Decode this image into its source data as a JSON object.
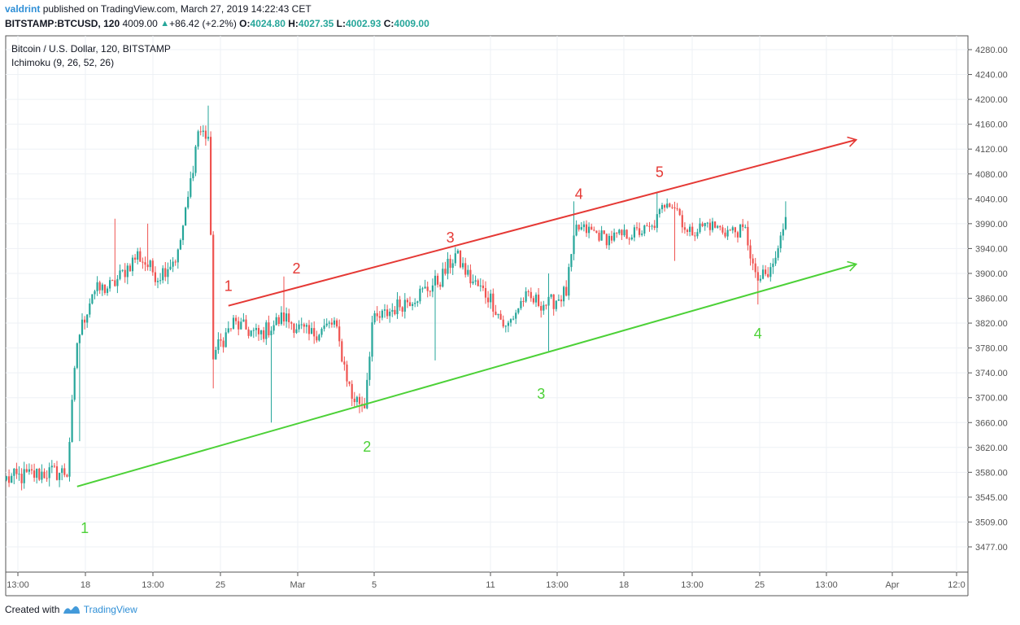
{
  "header": {
    "author": "valdrint",
    "published_text": "published on TradingView.com, March 27, 2019 14:22:43 CET",
    "symbol": "BITSTAMP:BTCUSD, 120",
    "last": "4009.00",
    "change": "+86.42 (+2.2%)",
    "o_label": "O:",
    "o_value": "4024.80",
    "h_label": "H:",
    "h_value": "4027.35",
    "l_label": "L:",
    "l_value": "4002.93",
    "c_label": "C:",
    "c_value": "4009.00"
  },
  "legend": {
    "series": "Bitcoin / U.S. Dollar, 120, BITSTAMP",
    "indicator": "Ichimoku (9, 26, 52, 26)"
  },
  "footer": {
    "created_with": "Created with",
    "brand": "TradingView"
  },
  "colors": {
    "up": "#26a69a",
    "down": "#ef5350",
    "red_line": "#e53935",
    "green_line": "#4cd137",
    "grid": "#eef1f5"
  },
  "chart_data": {
    "type": "candlestick",
    "y_ticks": [
      "4280.00",
      "4240.00",
      "4200.00",
      "4160.00",
      "4120.00",
      "4080.00",
      "4040.00",
      "3990.00",
      "3940.00",
      "3900.00",
      "3860.00",
      "3820.00",
      "3780.00",
      "3740.00",
      "3700.00",
      "3660.00",
      "3620.00",
      "3580.00",
      "3545.00",
      "3509.00",
      "3477.00"
    ],
    "x_ticks": [
      "13:00",
      "18",
      "13:00",
      "25",
      "Mar",
      "5",
      "11",
      "13:00",
      "18",
      "13:00",
      "25",
      "13:00",
      "Apr",
      "12:0"
    ],
    "anchors": [
      {
        "i": 0,
        "p": 3570
      },
      {
        "i": 16,
        "p": 3580
      },
      {
        "i": 24,
        "p": 3580
      },
      {
        "i": 28,
        "p": 3790
      },
      {
        "i": 34,
        "p": 3870
      },
      {
        "i": 42,
        "p": 3880
      },
      {
        "i": 52,
        "p": 3930
      },
      {
        "i": 60,
        "p": 3895
      },
      {
        "i": 68,
        "p": 3930
      },
      {
        "i": 76,
        "p": 4150
      },
      {
        "i": 80,
        "p": 4140
      },
      {
        "i": 82,
        "p": 3770
      },
      {
        "i": 90,
        "p": 3820
      },
      {
        "i": 100,
        "p": 3800
      },
      {
        "i": 110,
        "p": 3830
      },
      {
        "i": 120,
        "p": 3800
      },
      {
        "i": 130,
        "p": 3820
      },
      {
        "i": 137,
        "p": 3700
      },
      {
        "i": 142,
        "p": 3690
      },
      {
        "i": 145,
        "p": 3820
      },
      {
        "i": 156,
        "p": 3850
      },
      {
        "i": 165,
        "p": 3870
      },
      {
        "i": 172,
        "p": 3890
      },
      {
        "i": 178,
        "p": 3930
      },
      {
        "i": 184,
        "p": 3890
      },
      {
        "i": 192,
        "p": 3860
      },
      {
        "i": 198,
        "p": 3810
      },
      {
        "i": 205,
        "p": 3860
      },
      {
        "i": 215,
        "p": 3850
      },
      {
        "i": 222,
        "p": 3870
      },
      {
        "i": 226,
        "p": 3980
      },
      {
        "i": 232,
        "p": 3975
      },
      {
        "i": 238,
        "p": 3960
      },
      {
        "i": 248,
        "p": 3970
      },
      {
        "i": 256,
        "p": 3980
      },
      {
        "i": 262,
        "p": 4040
      },
      {
        "i": 266,
        "p": 4020
      },
      {
        "i": 270,
        "p": 3970
      },
      {
        "i": 278,
        "p": 3990
      },
      {
        "i": 285,
        "p": 3975
      },
      {
        "i": 293,
        "p": 3975
      },
      {
        "i": 297,
        "p": 3890
      },
      {
        "i": 302,
        "p": 3895
      },
      {
        "i": 306,
        "p": 3935
      },
      {
        "i": 309,
        "p": 4010
      }
    ],
    "wicks": [
      {
        "i": 29,
        "low": 3630
      },
      {
        "i": 43,
        "high": 4000
      },
      {
        "i": 56,
        "high": 3990
      },
      {
        "i": 80,
        "high": 4190
      },
      {
        "i": 82,
        "low": 3715
      },
      {
        "i": 105,
        "low": 3660
      },
      {
        "i": 110,
        "high": 3895
      },
      {
        "i": 140,
        "low": 3675
      },
      {
        "i": 170,
        "low": 3760
      },
      {
        "i": 215,
        "high": 3900
      },
      {
        "i": 215,
        "low": 3775
      },
      {
        "i": 225,
        "high": 4035
      },
      {
        "i": 258,
        "high": 4050
      },
      {
        "i": 265,
        "low": 3920
      },
      {
        "i": 298,
        "low": 3850
      },
      {
        "i": 309,
        "high": 4035
      }
    ],
    "trendlines": [
      {
        "name": "",
        "color": "red",
        "from": {
          "i": 88,
          "p": 3848
        },
        "to": {
          "i": 337,
          "p": 4135
        },
        "arrow": true
      },
      {
        "name": "",
        "color": "green",
        "from": {
          "i": 28,
          "p": 3560
        },
        "to": {
          "i": 337,
          "p": 3915
        },
        "arrow": true
      }
    ],
    "annotations": [
      {
        "text": "1",
        "color": "red",
        "i": 88,
        "p": 3872
      },
      {
        "text": "2",
        "color": "red",
        "i": 115,
        "p": 3900
      },
      {
        "text": "3",
        "color": "red",
        "i": 176,
        "p": 3952
      },
      {
        "text": "4",
        "color": "red",
        "i": 227,
        "p": 4040
      },
      {
        "text": "5",
        "color": "red",
        "i": 259,
        "p": 4075
      },
      {
        "text": "1",
        "color": "green",
        "i": 31,
        "p": 3495
      },
      {
        "text": "2",
        "color": "green",
        "i": 143,
        "p": 3613
      },
      {
        "text": "3",
        "color": "green",
        "i": 212,
        "p": 3698
      },
      {
        "text": "4",
        "color": "green",
        "i": 298,
        "p": 3795
      }
    ]
  }
}
